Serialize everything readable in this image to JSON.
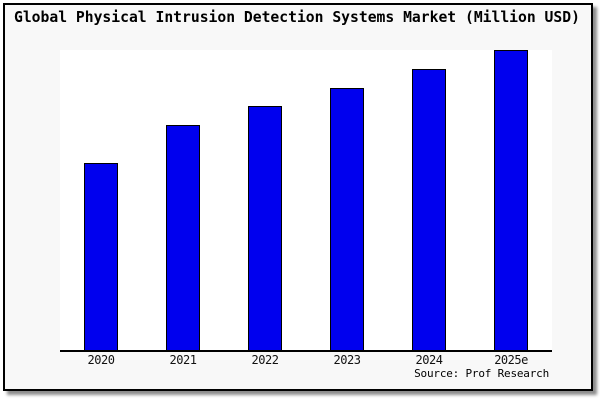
{
  "header": {
    "title": "Global Physical Intrusion Detection Systems Market (Million USD)"
  },
  "footer": {
    "source": "Source: Prof Research"
  },
  "colors": {
    "background": "#F8F8F8",
    "plot_background": "#FFFFFF",
    "frame_border": "#000000",
    "bar_fill": "#0000EE",
    "bar_border": "#000000",
    "axis": "#000000",
    "text": "#000000"
  },
  "chart_data": {
    "type": "bar",
    "title": "Global Physical Intrusion Detection Systems Market (Million USD)",
    "categories": [
      "2020",
      "2021",
      "2022",
      "2023",
      "2024",
      "2025e"
    ],
    "values": [
      62.5,
      75.0,
      81.3,
      87.5,
      93.8,
      100
    ],
    "xlabel": "",
    "ylabel": "",
    "ylim": [
      0,
      100
    ],
    "grid": false,
    "legend": false,
    "y_axis_labels_shown": false,
    "note": "No y-axis scale is drawn; values are relative bar heights with the tallest (2025e) bar = 100",
    "source": "Source: Prof Research",
    "bar_color": "#0000EE"
  }
}
